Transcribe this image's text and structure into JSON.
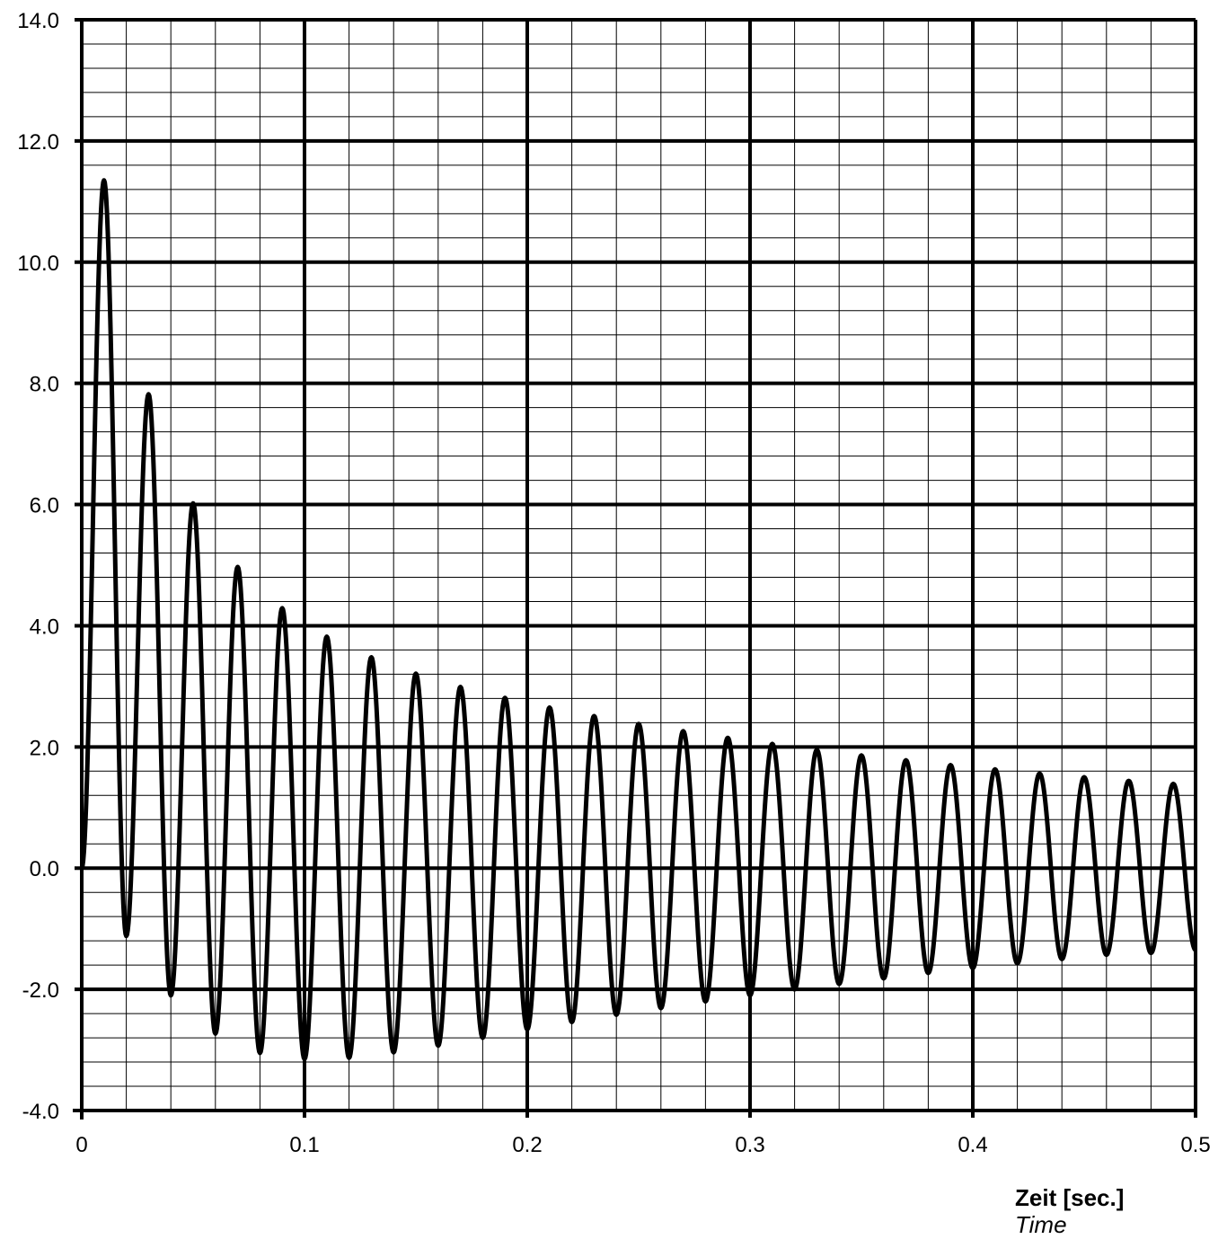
{
  "chart_data": {
    "type": "line",
    "xlabel": "Zeit [sec.]",
    "xlabel_sub": "Time",
    "ylabel": "",
    "xlim": [
      0,
      0.5
    ],
    "ylim": [
      -4.0,
      14.0
    ],
    "x_ticks": [
      "0",
      "0.1",
      "0.2",
      "0.3",
      "0.4",
      "0.5"
    ],
    "y_ticks": [
      "-4.0",
      "-2.0",
      "0.0",
      "2.0",
      "4.0",
      "6.0",
      "8.0",
      "10.0",
      "12.0",
      "14.0"
    ],
    "x_major_step": 0.1,
    "x_minor_step": 0.02,
    "y_major_step": 2.0,
    "y_minor_step": 0.4,
    "grid": true,
    "line_color": "#000000",
    "series": [
      {
        "peaks": {
          "x": [
            0.01,
            0.03,
            0.05,
            0.07,
            0.09,
            0.11,
            0.13,
            0.15,
            0.17,
            0.19,
            0.21,
            0.23,
            0.25,
            0.27,
            0.29,
            0.31,
            0.33,
            0.35,
            0.37,
            0.39,
            0.41,
            0.43,
            0.45,
            0.47,
            0.49
          ],
          "y": [
            11.35,
            7.82,
            6.02,
            4.97,
            4.29,
            3.82,
            3.48,
            3.21,
            2.99,
            2.81,
            2.65,
            2.51,
            2.38,
            2.26,
            2.15,
            2.05,
            1.95,
            1.86,
            1.78,
            1.7,
            1.63,
            1.56,
            1.5,
            1.44,
            1.39
          ]
        },
        "troughs": {
          "x": [
            0.02,
            0.04,
            0.06,
            0.08,
            0.1,
            0.12,
            0.14,
            0.16,
            0.18,
            0.2,
            0.22,
            0.24,
            0.26,
            0.28,
            0.3,
            0.32,
            0.34,
            0.36,
            0.38,
            0.4,
            0.42,
            0.44,
            0.46,
            0.48
          ],
          "y": [
            -1.12,
            -2.1,
            -2.73,
            -3.05,
            -3.15,
            -3.13,
            -3.04,
            -2.93,
            -2.8,
            -2.66,
            -2.54,
            -2.42,
            -2.31,
            -2.2,
            -2.1,
            -2.0,
            -1.91,
            -1.82,
            -1.73,
            -1.65,
            -1.57,
            -1.5,
            -1.43,
            -1.4
          ]
        },
        "start": [
          0,
          0.0
        ],
        "end": [
          0.5,
          -1.35
        ]
      }
    ]
  }
}
